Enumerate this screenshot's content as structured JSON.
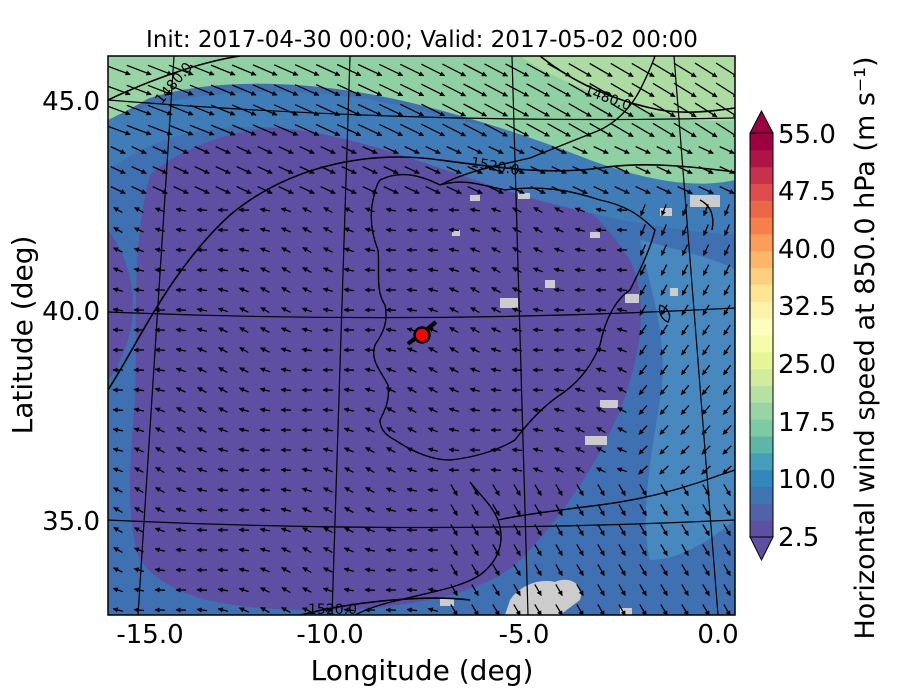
{
  "figure": {
    "title": "Init: 2017-04-30 00:00; Valid: 2017-05-02 00:00",
    "xlabel": "Longitude (deg)",
    "ylabel": "Latitude (deg)",
    "colorbar_label": "Horizontal wind speed at 850.0 hPa (m s⁻¹)"
  },
  "axes": {
    "x_ticks": [
      "-15.0",
      "-10.0",
      "-5.0",
      "0.0"
    ],
    "y_ticks": [
      "45.0",
      "40.0",
      "35.0"
    ]
  },
  "colorbar": {
    "tick_labels": [
      "55.0",
      "47.5",
      "40.0",
      "32.5",
      "25.0",
      "17.5",
      "10.0",
      "2.5"
    ],
    "min": 2.5,
    "max": 55.0,
    "extend": "both",
    "colors": [
      "#5e4fa2",
      "#4f62aa",
      "#4075b4",
      "#3288bd",
      "#469ebb",
      "#5cb7a9",
      "#7ccba5",
      "#99d5a4",
      "#b5e1a1",
      "#d0ec9c",
      "#e6f598",
      "#f4fbaa",
      "#fffebe",
      "#fff3aa",
      "#fee593",
      "#fdd07f",
      "#fdb768",
      "#fb9d59",
      "#f67f4b",
      "#ec6845",
      "#de4d4b",
      "#c7314b",
      "#ad1549",
      "#9e0142"
    ]
  },
  "contours": {
    "labels": [
      "1480.0",
      "1480.0",
      "1520.0",
      "1520.0"
    ]
  },
  "marker": {
    "lon": -7.8,
    "lat": 39.4,
    "color": "#ff0000"
  },
  "map_colors": {
    "background_low": "#5e4fa2",
    "background_mid": "#3f70b2",
    "high_wind": "#8fd1a3",
    "missing": "#cccccc"
  }
}
